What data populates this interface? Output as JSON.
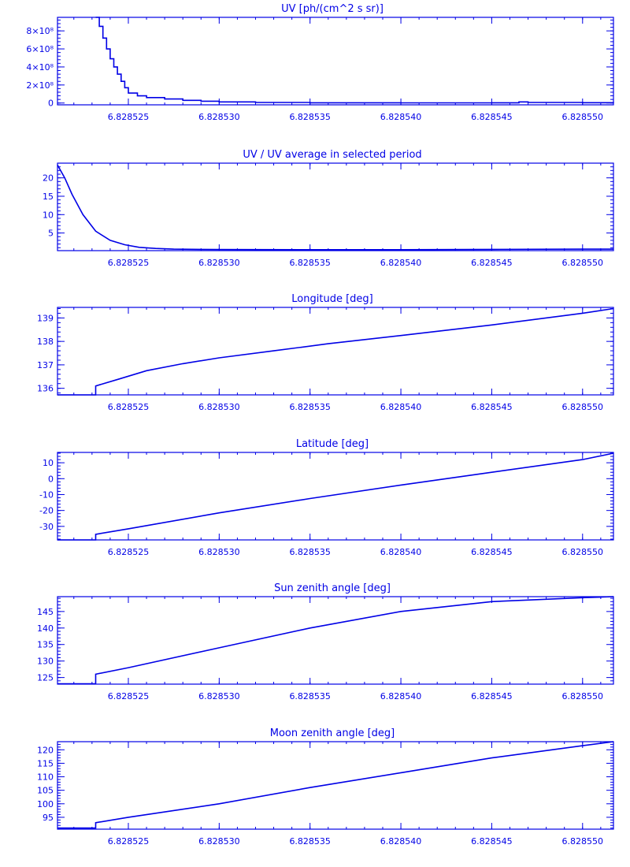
{
  "figure": {
    "color": "#0000e6",
    "background": "#ffffff"
  },
  "chart_data": [
    {
      "type": "line",
      "title": "UV [ph/(cm^2 s sr)]",
      "xlabel": "",
      "ylabel": "",
      "xlim": [
        6.8285211,
        6.8285517
      ],
      "ylim": [
        -2,
        95
      ],
      "yticks": [
        {
          "value": 0,
          "label": "0"
        },
        {
          "value": 20,
          "label": "2×10⁸"
        },
        {
          "value": 40,
          "label": "4×10⁸"
        },
        {
          "value": 60,
          "label": "6×10⁸"
        },
        {
          "value": 80,
          "label": "8×10⁸"
        }
      ],
      "xticks": [
        {
          "value": 6.828525,
          "label": "6.828525"
        },
        {
          "value": 6.82853,
          "label": "6.828530"
        },
        {
          "value": 6.828535,
          "label": "6.828535"
        },
        {
          "value": 6.82854,
          "label": "6.828540"
        },
        {
          "value": 6.828545,
          "label": "6.828545"
        },
        {
          "value": 6.82855,
          "label": "6.828550"
        }
      ],
      "step": true,
      "x": [
        6.8285232,
        6.8285234,
        6.8285236,
        6.8285238,
        6.828524,
        6.8285242,
        6.8285244,
        6.8285246,
        6.8285248,
        6.828525,
        6.8285255,
        6.828526,
        6.828527,
        6.828528,
        6.828529,
        6.82853,
        6.828532,
        6.828535,
        6.82854,
        6.828545,
        6.8285465,
        6.828547,
        6.82855,
        6.8285517
      ],
      "y": [
        95,
        85,
        72,
        60,
        49,
        40,
        32,
        24,
        17,
        11,
        8,
        6,
        4.5,
        3,
        2,
        1.2,
        0.6,
        0.3,
        0.2,
        0.3,
        1.2,
        0.6,
        0.4,
        0.3
      ]
    },
    {
      "type": "line",
      "title": "UV / UV average in selected period",
      "xlabel": "",
      "ylabel": "",
      "xlim": [
        6.8285211,
        6.8285517
      ],
      "ylim": [
        0.2,
        24
      ],
      "yticks": [
        {
          "value": 5,
          "label": "5"
        },
        {
          "value": 10,
          "label": "10"
        },
        {
          "value": 15,
          "label": "15"
        },
        {
          "value": 20,
          "label": "20"
        }
      ],
      "xticks": [
        {
          "value": 6.828525,
          "label": "6.828525"
        },
        {
          "value": 6.82853,
          "label": "6.828530"
        },
        {
          "value": 6.828535,
          "label": "6.828535"
        },
        {
          "value": 6.82854,
          "label": "6.828540"
        },
        {
          "value": 6.828545,
          "label": "6.828545"
        },
        {
          "value": 6.82855,
          "label": "6.828550"
        }
      ],
      "step": false,
      "x": [
        6.8285211,
        6.8285215,
        6.8285219,
        6.8285225,
        6.8285232,
        6.828524,
        6.8285248,
        6.8285256,
        6.8285265,
        6.8285275,
        6.82853,
        6.828535,
        6.82854,
        6.828545,
        6.82855,
        6.8285517
      ],
      "y": [
        23.5,
        20,
        15.5,
        10,
        5.5,
        3,
        1.8,
        1.1,
        0.8,
        0.6,
        0.5,
        0.45,
        0.45,
        0.55,
        0.6,
        0.6
      ]
    },
    {
      "type": "line",
      "title": "Longitude [deg]",
      "xlabel": "",
      "ylabel": "",
      "xlim": [
        6.8285211,
        6.8285517
      ],
      "ylim": [
        135.72,
        139.45
      ],
      "yticks": [
        {
          "value": 136,
          "label": "136"
        },
        {
          "value": 137,
          "label": "137"
        },
        {
          "value": 138,
          "label": "138"
        },
        {
          "value": 139,
          "label": "139"
        }
      ],
      "xticks": [
        {
          "value": 6.828525,
          "label": "6.828525"
        },
        {
          "value": 6.82853,
          "label": "6.828530"
        },
        {
          "value": 6.828535,
          "label": "6.828535"
        },
        {
          "value": 6.82854,
          "label": "6.828540"
        },
        {
          "value": 6.828545,
          "label": "6.828545"
        },
        {
          "value": 6.82855,
          "label": "6.828550"
        }
      ],
      "step": false,
      "x": [
        6.8285211,
        6.8285232,
        6.8285232,
        6.8285245,
        6.828526,
        6.828528,
        6.82853,
        6.828533,
        6.828536,
        6.82854,
        6.828545,
        6.82855,
        6.8285517
      ],
      "y": [
        135.72,
        135.72,
        136.1,
        136.4,
        136.75,
        137.05,
        137.3,
        137.6,
        137.9,
        138.25,
        138.7,
        139.2,
        139.4
      ]
    },
    {
      "type": "line",
      "title": "Latitude [deg]",
      "xlabel": "",
      "ylabel": "",
      "xlim": [
        6.8285211,
        6.8285517
      ],
      "ylim": [
        -38.5,
        16.5
      ],
      "yticks": [
        {
          "value": -30,
          "label": "-30"
        },
        {
          "value": -20,
          "label": "-20"
        },
        {
          "value": -10,
          "label": "-10"
        },
        {
          "value": 0,
          "label": "0"
        },
        {
          "value": 10,
          "label": "10"
        }
      ],
      "xticks": [
        {
          "value": 6.828525,
          "label": "6.828525"
        },
        {
          "value": 6.82853,
          "label": "6.828530"
        },
        {
          "value": 6.828535,
          "label": "6.828535"
        },
        {
          "value": 6.82854,
          "label": "6.828540"
        },
        {
          "value": 6.828545,
          "label": "6.828545"
        },
        {
          "value": 6.82855,
          "label": "6.828550"
        }
      ],
      "step": false,
      "x": [
        6.8285211,
        6.8285232,
        6.8285232,
        6.828525,
        6.82853,
        6.828535,
        6.82854,
        6.828545,
        6.82855,
        6.8285517
      ],
      "y": [
        -38.5,
        -38.5,
        -35,
        -31.5,
        -21.5,
        -12.5,
        -4,
        4,
        12,
        16
      ]
    },
    {
      "type": "line",
      "title": "Sun zenith angle [deg]",
      "xlabel": "",
      "ylabel": "",
      "xlim": [
        6.8285211,
        6.8285517
      ],
      "ylim": [
        123,
        149.5
      ],
      "yticks": [
        {
          "value": 125,
          "label": "125"
        },
        {
          "value": 130,
          "label": "130"
        },
        {
          "value": 135,
          "label": "135"
        },
        {
          "value": 140,
          "label": "140"
        },
        {
          "value": 145,
          "label": "145"
        }
      ],
      "xticks": [
        {
          "value": 6.828525,
          "label": "6.828525"
        },
        {
          "value": 6.82853,
          "label": "6.828530"
        },
        {
          "value": 6.828535,
          "label": "6.828535"
        },
        {
          "value": 6.82854,
          "label": "6.828540"
        },
        {
          "value": 6.828545,
          "label": "6.828545"
        },
        {
          "value": 6.82855,
          "label": "6.828550"
        }
      ],
      "step": false,
      "x": [
        6.8285211,
        6.8285232,
        6.8285232,
        6.828525,
        6.82853,
        6.828535,
        6.82854,
        6.828545,
        6.82855,
        6.8285517
      ],
      "y": [
        123.1,
        123.1,
        126,
        128,
        134,
        140,
        145,
        148,
        149.2,
        149.5
      ]
    },
    {
      "type": "line",
      "title": "Moon zenith angle [deg]",
      "xlabel": "",
      "ylabel": "",
      "xlim": [
        6.8285211,
        6.8285517
      ],
      "ylim": [
        90.6,
        123
      ],
      "yticks": [
        {
          "value": 95,
          "label": "95"
        },
        {
          "value": 100,
          "label": "100"
        },
        {
          "value": 105,
          "label": "105"
        },
        {
          "value": 110,
          "label": "110"
        },
        {
          "value": 115,
          "label": "115"
        },
        {
          "value": 120,
          "label": "120"
        }
      ],
      "xticks": [
        {
          "value": 6.828525,
          "label": "6.828525"
        },
        {
          "value": 6.82853,
          "label": "6.828530"
        },
        {
          "value": 6.828535,
          "label": "6.828535"
        },
        {
          "value": 6.82854,
          "label": "6.828540"
        },
        {
          "value": 6.828545,
          "label": "6.828545"
        },
        {
          "value": 6.82855,
          "label": "6.828550"
        }
      ],
      "step": false,
      "x": [
        6.8285211,
        6.8285232,
        6.8285232,
        6.828525,
        6.82853,
        6.828535,
        6.82854,
        6.828545,
        6.82855,
        6.8285517
      ],
      "y": [
        91,
        91,
        93,
        95,
        100,
        106,
        111.5,
        117,
        121.5,
        123
      ]
    }
  ]
}
